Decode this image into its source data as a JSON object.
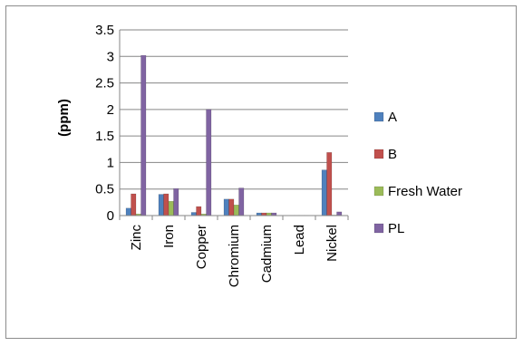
{
  "chart_data": {
    "type": "bar",
    "title": "",
    "xlabel": "",
    "ylabel": "(ppm)",
    "ylim": [
      0,
      3.5
    ],
    "yticks": [
      "0",
      "0.5",
      "1",
      "1.5",
      "2",
      "2.5",
      "3",
      "3.5"
    ],
    "grid": true,
    "legend_position": "right",
    "categories": [
      "Zinc",
      "Iron",
      "Copper",
      "Chromium",
      "Cadmium",
      "Lead",
      "Nickel"
    ],
    "series": [
      {
        "name": "A",
        "color": "#4f81bd",
        "values": [
          0.14,
          0.4,
          0.06,
          0.31,
          0.05,
          0.005,
          0.86
        ]
      },
      {
        "name": "B",
        "color": "#c0504d",
        "values": [
          0.41,
          0.41,
          0.17,
          0.31,
          0.05,
          0.005,
          1.19
        ]
      },
      {
        "name": "Fresh Water",
        "color": "#9bbb59",
        "values": [
          0.03,
          0.27,
          0.03,
          0.2,
          0.05,
          0.005,
          0.01
        ]
      },
      {
        "name": "PL",
        "color": "#8064a2",
        "values": [
          3.02,
          0.51,
          2.0,
          0.52,
          0.05,
          0.005,
          0.07
        ]
      }
    ]
  }
}
